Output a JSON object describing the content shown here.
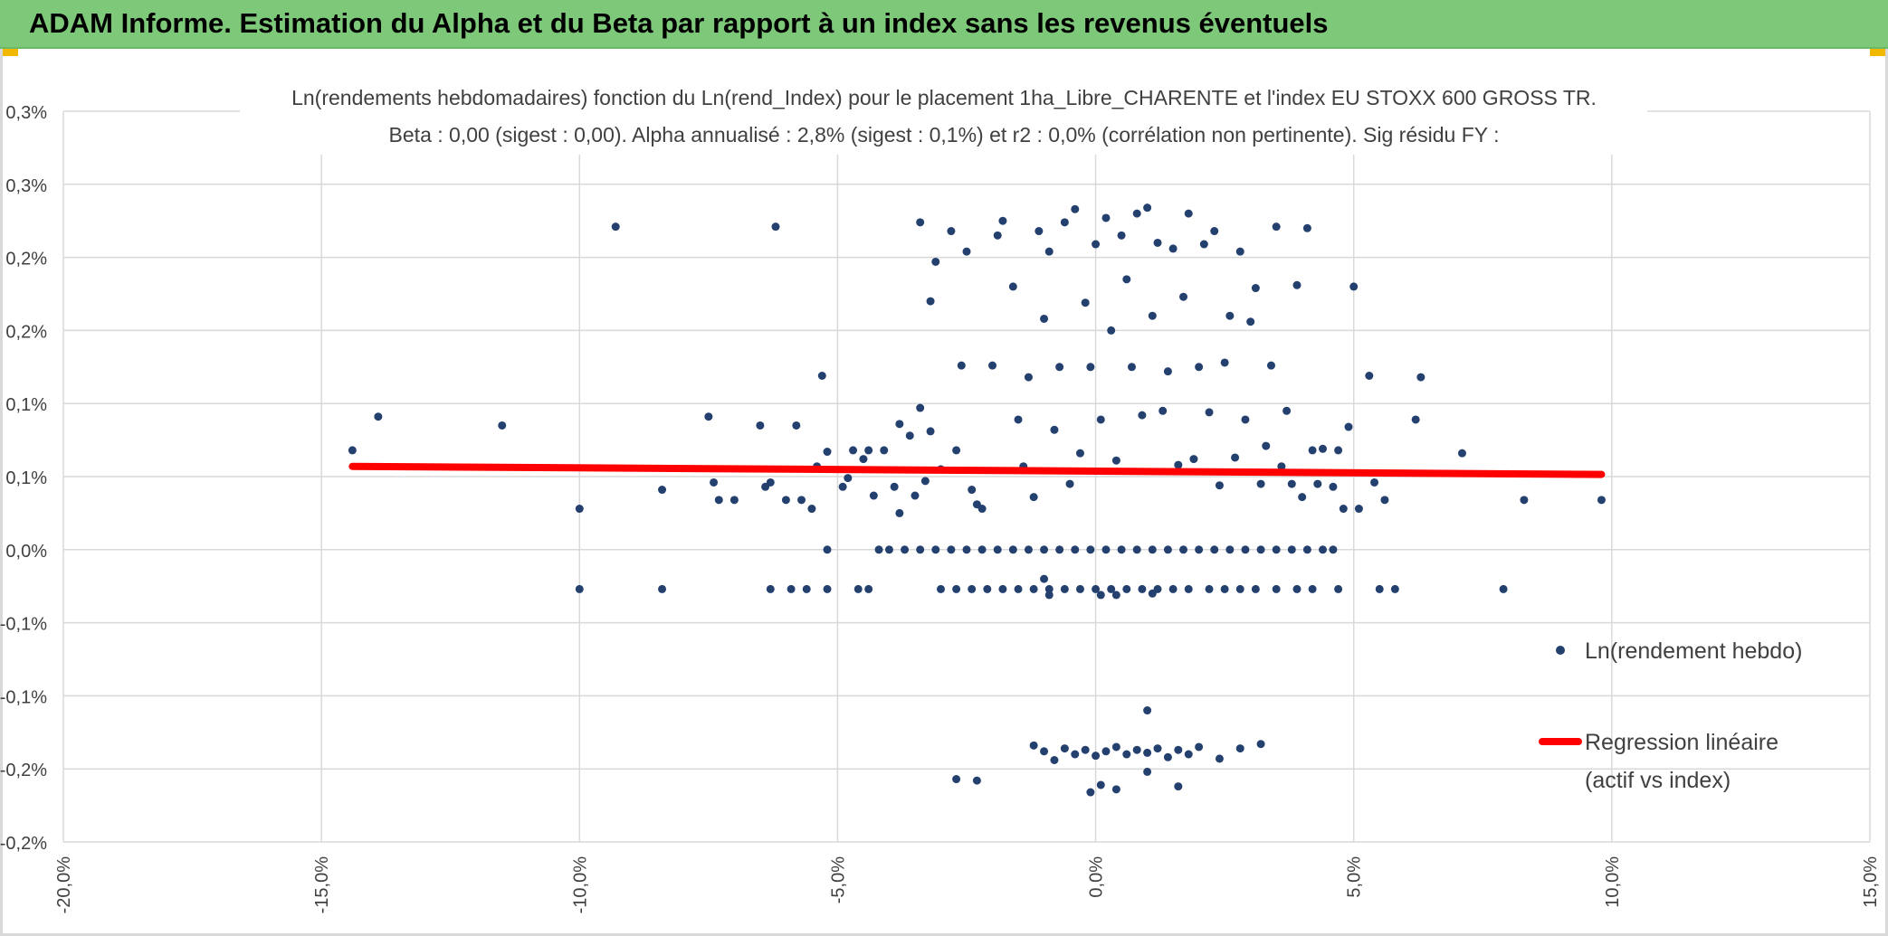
{
  "header": {
    "title": "ADAM Informe. Estimation du Alpha et du Beta par rapport à un index sans les revenus éventuels"
  },
  "colors": {
    "banner": "#7ec87a",
    "points": "#23406e",
    "regression": "#ff0000",
    "grid": "#d9d9d9",
    "corner": "#f2b800"
  },
  "chart_data": {
    "type": "scatter",
    "title": "Ln(rendements hebdomadaires) fonction du Ln(rend_Index) pour le placement 1ha_Libre_CHARENTE et l'index EU STOXX 600 GROSS TR.",
    "subtitle": "Beta : 0,00 (sigest : 0,00). Alpha annualisé : 2,8% (sigest : 0,1%) et r2 : 0,0% (corrélation non pertinente). Sig résidu FY :",
    "xlim": [
      -0.2,
      0.15
    ],
    "ylim": [
      -0.002,
      0.003
    ],
    "x_ticks": [
      -0.2,
      -0.15,
      -0.1,
      -0.05,
      0.0,
      0.05,
      0.1,
      0.15
    ],
    "x_tick_labels": [
      "-20,0%",
      "-15,0%",
      "-10,0%",
      "-5,0%",
      "0,0%",
      "5,0%",
      "10,0%",
      "15,0%"
    ],
    "y_ticks": [
      0.003,
      0.0025,
      0.002,
      0.0015,
      0.001,
      0.0005,
      0.0,
      -0.0005,
      -0.001,
      -0.0015,
      -0.002
    ],
    "y_tick_labels": [
      "0,3%",
      "0,3%",
      "0,2%",
      "0,2%",
      "0,1%",
      "0,1%",
      "0,0%",
      "-0,1%",
      "-0,1%",
      "-0,2%",
      "-0,2%"
    ],
    "grid": true,
    "legend_position": "right",
    "legend": [
      {
        "label": "Ln(rendement hebdo)",
        "kind": "point"
      },
      {
        "label_line1": "Regression linéaire",
        "label_line2": "(actif vs index)",
        "kind": "line"
      }
    ],
    "regression": {
      "x": [
        -0.144,
        0.098
      ],
      "y": [
        0.00057,
        0.000515
      ]
    },
    "series": [
      {
        "name": "Ln(rendement hebdo)",
        "points": [
          [
            -0.144,
            0.00068
          ],
          [
            -0.139,
            0.00091
          ],
          [
            -0.115,
            0.00085
          ],
          [
            -0.093,
            0.00221
          ],
          [
            -0.1,
            0.00028
          ],
          [
            -0.1,
            -0.00027
          ],
          [
            -0.084,
            0.00041
          ],
          [
            -0.084,
            -0.00027
          ],
          [
            -0.075,
            0.00091
          ],
          [
            -0.074,
            0.00046
          ],
          [
            -0.073,
            0.00034
          ],
          [
            -0.07,
            0.00034
          ],
          [
            -0.065,
            0.00085
          ],
          [
            -0.064,
            0.00043
          ],
          [
            -0.063,
            0.00046
          ],
          [
            -0.063,
            -0.00027
          ],
          [
            -0.062,
            0.00221
          ],
          [
            -0.06,
            0.00034
          ],
          [
            -0.059,
            -0.00027
          ],
          [
            -0.058,
            0.00085
          ],
          [
            -0.057,
            0.00034
          ],
          [
            -0.056,
            -0.00027
          ],
          [
            -0.055,
            0.00028
          ],
          [
            -0.054,
            0.00057
          ],
          [
            -0.053,
            0.00119
          ],
          [
            -0.052,
            0.00067
          ],
          [
            -0.052,
            0.0
          ],
          [
            -0.052,
            -0.00027
          ],
          [
            -0.049,
            0.00043
          ],
          [
            -0.048,
            0.00049
          ],
          [
            -0.047,
            0.00068
          ],
          [
            -0.046,
            -0.00027
          ],
          [
            -0.045,
            0.00062
          ],
          [
            -0.044,
            0.00068
          ],
          [
            -0.044,
            -0.00027
          ],
          [
            -0.043,
            0.00037
          ],
          [
            -0.042,
            0.0
          ],
          [
            -0.041,
            0.00068
          ],
          [
            -0.04,
            0.0
          ],
          [
            -0.039,
            0.00043
          ],
          [
            -0.038,
            0.00086
          ],
          [
            -0.038,
            0.00025
          ],
          [
            -0.037,
            0.0
          ],
          [
            -0.036,
            0.00078
          ],
          [
            -0.035,
            0.00037
          ],
          [
            -0.034,
            0.00224
          ],
          [
            -0.034,
            0.00097
          ],
          [
            -0.033,
            0.00047
          ],
          [
            -0.032,
            0.0017
          ],
          [
            -0.032,
            0.00081
          ],
          [
            -0.031,
            0.00197
          ],
          [
            -0.03,
            0.00055
          ],
          [
            -0.028,
            0.00218
          ],
          [
            -0.027,
            0.00068
          ],
          [
            -0.026,
            0.00126
          ],
          [
            -0.025,
            0.00204
          ],
          [
            -0.024,
            0.00041
          ],
          [
            -0.023,
            0.00031
          ],
          [
            -0.022,
            0.00028
          ],
          [
            -0.02,
            0.00126
          ],
          [
            -0.019,
            0.00215
          ],
          [
            -0.018,
            0.00225
          ],
          [
            -0.016,
            0.0018
          ],
          [
            -0.015,
            0.00089
          ],
          [
            -0.014,
            0.00057
          ],
          [
            -0.013,
            0.00118
          ],
          [
            -0.012,
            0.00036
          ],
          [
            -0.011,
            0.00218
          ],
          [
            -0.01,
            0.00158
          ],
          [
            -0.009,
            0.00204
          ],
          [
            -0.008,
            0.00082
          ],
          [
            -0.007,
            0.00125
          ],
          [
            -0.006,
            0.00224
          ],
          [
            -0.005,
            0.00045
          ],
          [
            -0.004,
            0.00233
          ],
          [
            -0.003,
            0.00066
          ],
          [
            -0.002,
            0.00169
          ],
          [
            -0.001,
            0.00125
          ],
          [
            0.0,
            0.00209
          ],
          [
            0.001,
            0.00089
          ],
          [
            0.002,
            0.00227
          ],
          [
            0.003,
            0.0015
          ],
          [
            0.004,
            0.00061
          ],
          [
            0.005,
            0.00215
          ],
          [
            0.006,
            0.00185
          ],
          [
            0.007,
            0.00125
          ],
          [
            0.008,
            0.0023
          ],
          [
            0.009,
            0.00092
          ],
          [
            0.01,
            0.00234
          ],
          [
            0.011,
            0.0016
          ],
          [
            0.012,
            0.0021
          ],
          [
            0.013,
            0.00095
          ],
          [
            0.014,
            0.00122
          ],
          [
            0.015,
            0.00206
          ],
          [
            0.016,
            0.00058
          ],
          [
            0.017,
            0.00173
          ],
          [
            0.018,
            0.0023
          ],
          [
            0.019,
            0.00062
          ],
          [
            0.02,
            0.00125
          ],
          [
            0.021,
            0.00209
          ],
          [
            0.022,
            0.00094
          ],
          [
            0.023,
            0.00218
          ],
          [
            0.024,
            0.00044
          ],
          [
            0.025,
            0.00128
          ],
          [
            0.026,
            0.0016
          ],
          [
            0.027,
            0.00063
          ],
          [
            0.028,
            0.00204
          ],
          [
            0.029,
            0.00089
          ],
          [
            0.03,
            0.00156
          ],
          [
            0.031,
            0.00179
          ],
          [
            0.032,
            0.00045
          ],
          [
            0.033,
            0.00071
          ],
          [
            0.034,
            0.00126
          ],
          [
            0.035,
            0.00221
          ],
          [
            0.036,
            0.00057
          ],
          [
            0.037,
            0.00095
          ],
          [
            0.038,
            0.00045
          ],
          [
            0.039,
            0.00181
          ],
          [
            0.04,
            0.00036
          ],
          [
            0.041,
            0.0022
          ],
          [
            0.042,
            0.00068
          ],
          [
            0.043,
            0.00045
          ],
          [
            0.044,
            0.00069
          ],
          [
            0.046,
            0.00043
          ],
          [
            0.047,
            0.00068
          ],
          [
            0.048,
            0.00028
          ],
          [
            0.049,
            0.00084
          ],
          [
            0.05,
            0.0018
          ],
          [
            0.051,
            0.00028
          ],
          [
            0.053,
            0.00119
          ],
          [
            0.054,
            0.00046
          ],
          [
            0.056,
            0.00034
          ],
          [
            0.062,
            0.00089
          ],
          [
            0.063,
            0.00118
          ],
          [
            0.071,
            0.00066
          ],
          [
            0.083,
            0.00034
          ],
          [
            0.098,
            0.00034
          ],
          [
            0.079,
            -0.00027
          ],
          [
            0.058,
            -0.00027
          ],
          [
            0.055,
            -0.00027
          ],
          [
            0.047,
            -0.00027
          ],
          [
            0.042,
            -0.00027
          ],
          [
            0.039,
            -0.00027
          ],
          [
            0.035,
            -0.00027
          ],
          [
            0.031,
            -0.00027
          ],
          [
            0.028,
            -0.00027
          ],
          [
            0.025,
            -0.00027
          ],
          [
            0.022,
            -0.00027
          ],
          [
            0.018,
            -0.00027
          ],
          [
            0.015,
            -0.00027
          ],
          [
            0.012,
            -0.00027
          ],
          [
            0.009,
            -0.00027
          ],
          [
            0.006,
            -0.00027
          ],
          [
            0.003,
            -0.00027
          ],
          [
            0.0,
            -0.00027
          ],
          [
            -0.003,
            -0.00027
          ],
          [
            -0.006,
            -0.00027
          ],
          [
            -0.009,
            -0.00027
          ],
          [
            -0.012,
            -0.00027
          ],
          [
            -0.015,
            -0.00027
          ],
          [
            -0.018,
            -0.00027
          ],
          [
            -0.021,
            -0.00027
          ],
          [
            -0.024,
            -0.00027
          ],
          [
            -0.027,
            -0.00027
          ],
          [
            -0.03,
            -0.00027
          ],
          [
            -0.01,
            -0.0002
          ],
          [
            -0.009,
            -0.00031
          ],
          [
            0.001,
            -0.00031
          ],
          [
            0.004,
            -0.00031
          ],
          [
            0.011,
            -0.0003
          ],
          [
            0.046,
            0.0
          ],
          [
            0.044,
            0.0
          ],
          [
            0.041,
            0.0
          ],
          [
            0.038,
            0.0
          ],
          [
            0.035,
            0.0
          ],
          [
            0.032,
            0.0
          ],
          [
            0.029,
            0.0
          ],
          [
            0.026,
            0.0
          ],
          [
            0.023,
            0.0
          ],
          [
            0.02,
            0.0
          ],
          [
            0.017,
            0.0
          ],
          [
            0.014,
            0.0
          ],
          [
            0.011,
            0.0
          ],
          [
            0.008,
            0.0
          ],
          [
            0.005,
            0.0
          ],
          [
            0.002,
            0.0
          ],
          [
            -0.001,
            0.0
          ],
          [
            -0.004,
            0.0
          ],
          [
            -0.007,
            0.0
          ],
          [
            -0.01,
            0.0
          ],
          [
            -0.013,
            0.0
          ],
          [
            -0.016,
            0.0
          ],
          [
            -0.019,
            0.0
          ],
          [
            -0.022,
            0.0
          ],
          [
            -0.025,
            0.0
          ],
          [
            -0.028,
            0.0
          ],
          [
            -0.031,
            0.0
          ],
          [
            -0.034,
            0.0
          ],
          [
            -0.012,
            -0.00134
          ],
          [
            -0.01,
            -0.00138
          ],
          [
            -0.008,
            -0.00144
          ],
          [
            -0.006,
            -0.00136
          ],
          [
            -0.004,
            -0.0014
          ],
          [
            -0.002,
            -0.00137
          ],
          [
            0.0,
            -0.00141
          ],
          [
            0.002,
            -0.00138
          ],
          [
            0.004,
            -0.00135
          ],
          [
            0.006,
            -0.0014
          ],
          [
            0.008,
            -0.00137
          ],
          [
            0.01,
            -0.00139
          ],
          [
            0.012,
            -0.00136
          ],
          [
            0.014,
            -0.00142
          ],
          [
            0.016,
            -0.00137
          ],
          [
            0.018,
            -0.0014
          ],
          [
            0.02,
            -0.00135
          ],
          [
            0.024,
            -0.00143
          ],
          [
            0.028,
            -0.00136
          ],
          [
            0.032,
            -0.00133
          ],
          [
            -0.027,
            -0.00157
          ],
          [
            -0.023,
            -0.00158
          ],
          [
            -0.001,
            -0.00166
          ],
          [
            0.001,
            -0.00161
          ],
          [
            0.004,
            -0.00164
          ],
          [
            0.01,
            -0.00152
          ],
          [
            0.016,
            -0.00162
          ],
          [
            0.01,
            -0.0011
          ]
        ]
      }
    ]
  }
}
